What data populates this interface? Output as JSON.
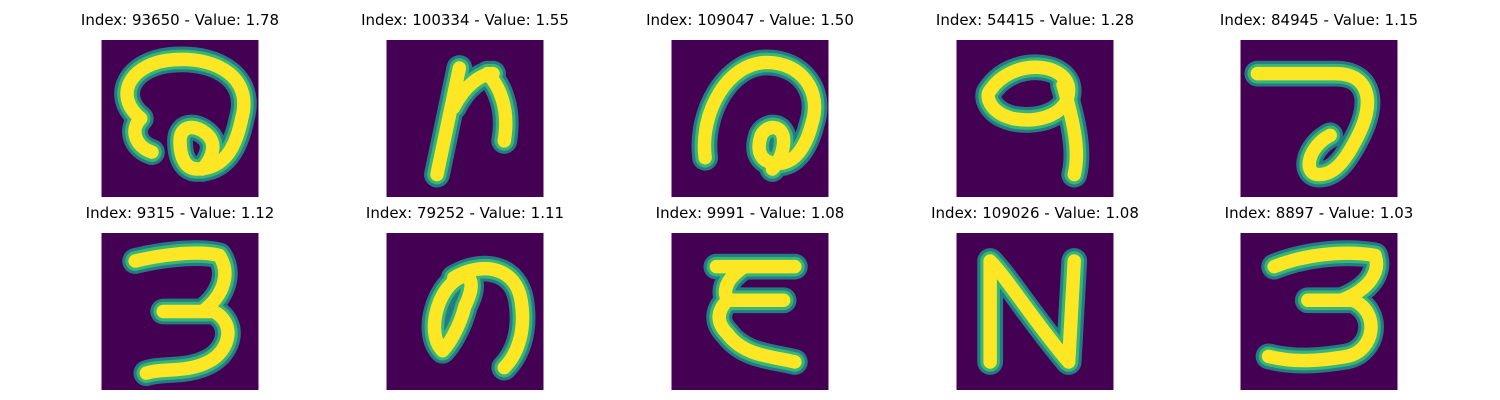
{
  "colors": {
    "background": "#440154",
    "stroke_mid": "#21918c",
    "stroke_edge": "#35b779",
    "stroke_core": "#fde725"
  },
  "panels": [
    {
      "label": "Index: 93650 - Value: 1.78",
      "glyph": "spiral-open"
    },
    {
      "label": "Index: 100334 - Value: 1.55",
      "glyph": "letter-n-slanted"
    },
    {
      "label": "Index: 109047 - Value: 1.50",
      "glyph": "spiral-tail"
    },
    {
      "label": "Index: 54415 - Value: 1.28",
      "glyph": "looped-q"
    },
    {
      "label": "Index: 84945 - Value: 1.15",
      "glyph": "hook-seven"
    },
    {
      "label": "Index: 9315 - Value: 1.12",
      "glyph": "digit-three"
    },
    {
      "label": "Index: 79252 - Value: 1.11",
      "glyph": "loop-a"
    },
    {
      "label": "Index: 9991 - Value: 1.08",
      "glyph": "epsilon-like"
    },
    {
      "label": "Index: 109026 - Value: 1.08",
      "glyph": "letter-n"
    },
    {
      "label": "Index: 8897 - Value: 1.03",
      "glyph": "digit-three-wide"
    }
  ]
}
